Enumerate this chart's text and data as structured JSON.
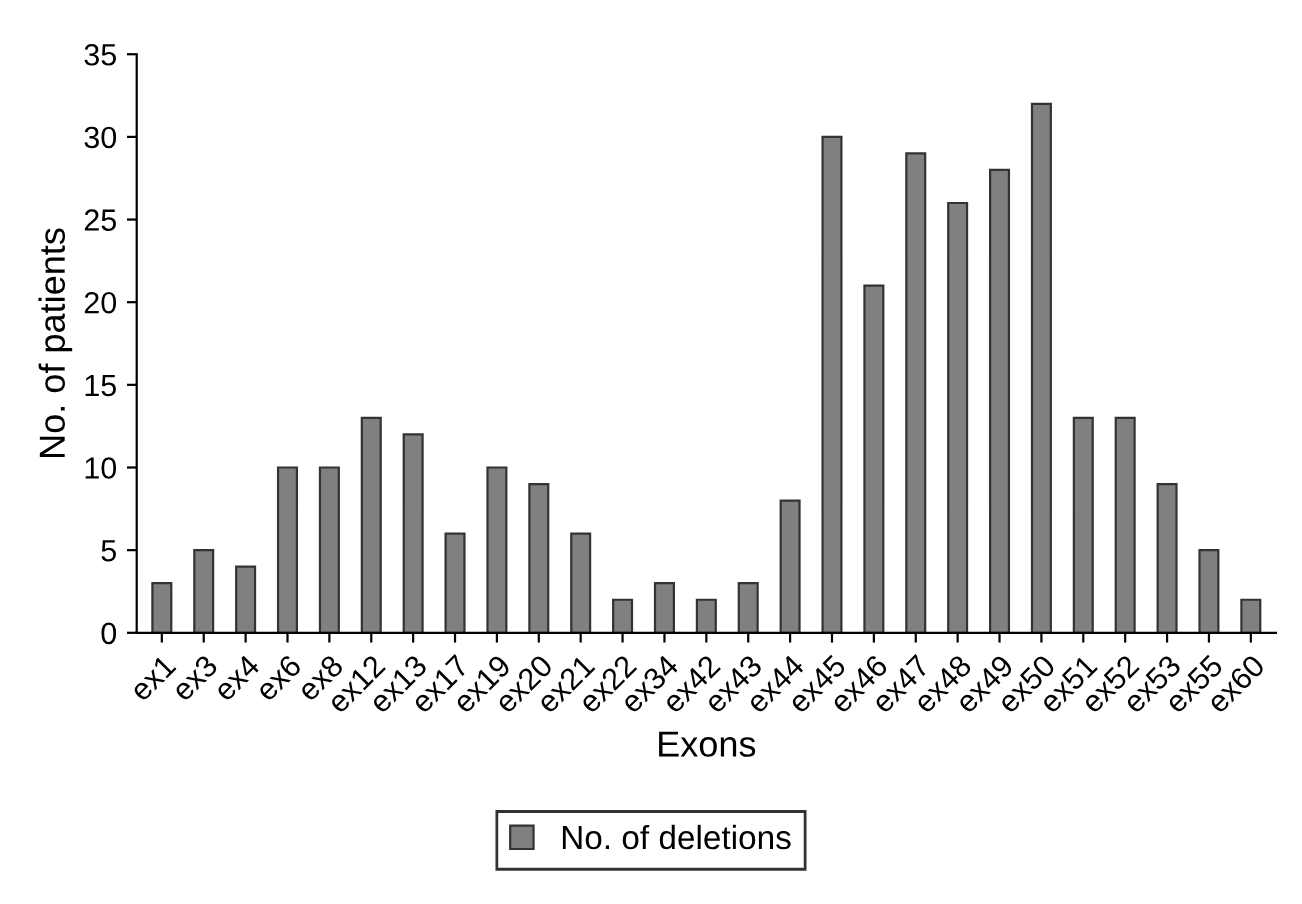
{
  "chart_data": {
    "type": "bar",
    "xlabel": "Exons",
    "ylabel": "No. of patients",
    "categories": [
      "ex1",
      "ex3",
      "ex4",
      "ex6",
      "ex8",
      "ex12",
      "ex13",
      "ex17",
      "ex19",
      "ex20",
      "ex21",
      "ex22",
      "ex34",
      "ex42",
      "ex43",
      "ex44",
      "ex45",
      "ex46",
      "ex47",
      "ex48",
      "ex49",
      "ex50",
      "ex51",
      "ex52",
      "ex53",
      "ex55",
      "ex60"
    ],
    "series": [
      {
        "name": "No. of deletions",
        "color": "#808080",
        "values": [
          3,
          5,
          4,
          10,
          10,
          13,
          12,
          6,
          10,
          9,
          6,
          2,
          3,
          2,
          3,
          8,
          30,
          21,
          29,
          26,
          28,
          32,
          13,
          13,
          9,
          5,
          2
        ]
      }
    ],
    "ylim": [
      0,
      35
    ],
    "yticks": [
      0,
      5,
      10,
      15,
      20,
      25,
      30,
      35
    ],
    "grid": false,
    "legend": "bottom"
  }
}
